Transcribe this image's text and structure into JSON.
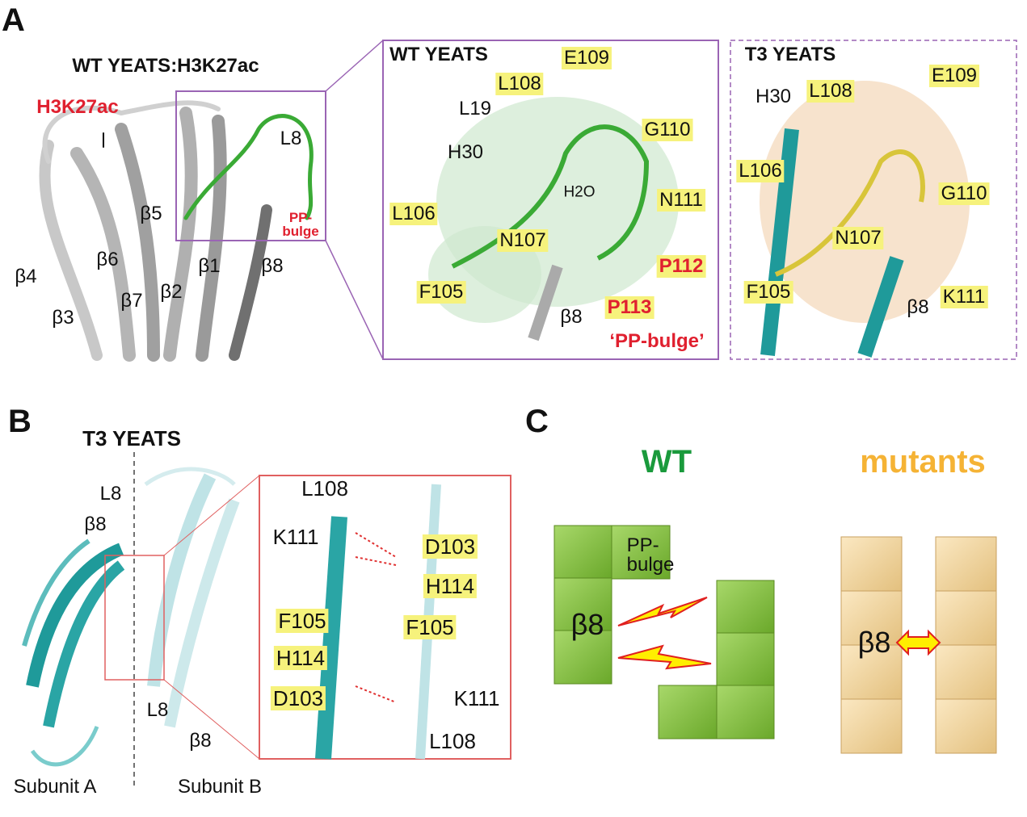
{
  "panels": {
    "a": "A",
    "b": "B",
    "c": "C"
  },
  "panel_a": {
    "overview_title": "WT YEATS:H3K27ac",
    "ligand_label": "H3K27ac",
    "overview_labels": [
      "L8",
      "β5",
      "β6",
      "β1",
      "β8",
      "β4",
      "β7",
      "β2",
      "β3"
    ],
    "pp_bulge_label": "PP-\nbulge",
    "wt_title": "WT YEATS",
    "wt_residues": [
      "E109",
      "L108",
      "G110",
      "N111",
      "L106",
      "N107",
      "F105"
    ],
    "wt_red_residues": [
      "P112",
      "P113"
    ],
    "wt_plain_labels": [
      "L19",
      "H30",
      "H2O",
      "β8"
    ],
    "wt_pp_bulge": "‘PP-bulge’",
    "t3_title": "T3 YEATS",
    "t3_residues": [
      "E109",
      "L108",
      "L106",
      "G110",
      "N107",
      "F105",
      "K111"
    ],
    "t3_plain_labels": [
      "H30",
      "β8"
    ]
  },
  "panel_b": {
    "title": "T3 YEATS",
    "overview_labels": [
      "L8",
      "β8",
      "L8",
      "β8"
    ],
    "subunits": [
      "Subunit A",
      "Subunit B"
    ],
    "plain_labels": [
      "L108",
      "K111",
      "K111",
      "L108"
    ],
    "yellow_labels": [
      "D103",
      "H114",
      "F105",
      "F105",
      "H114",
      "D103"
    ]
  },
  "panel_c": {
    "wt_title": "WT",
    "mutants_title": "mutants",
    "pp_bulge": "PP-\nbulge",
    "beta8_wt": "β8",
    "beta8_mut": "β8",
    "colors": {
      "wt": "#1a9a3c",
      "mutants": "#f5b335",
      "wt_block": "#8dc63f",
      "mut_block": "#f2d49c"
    }
  }
}
